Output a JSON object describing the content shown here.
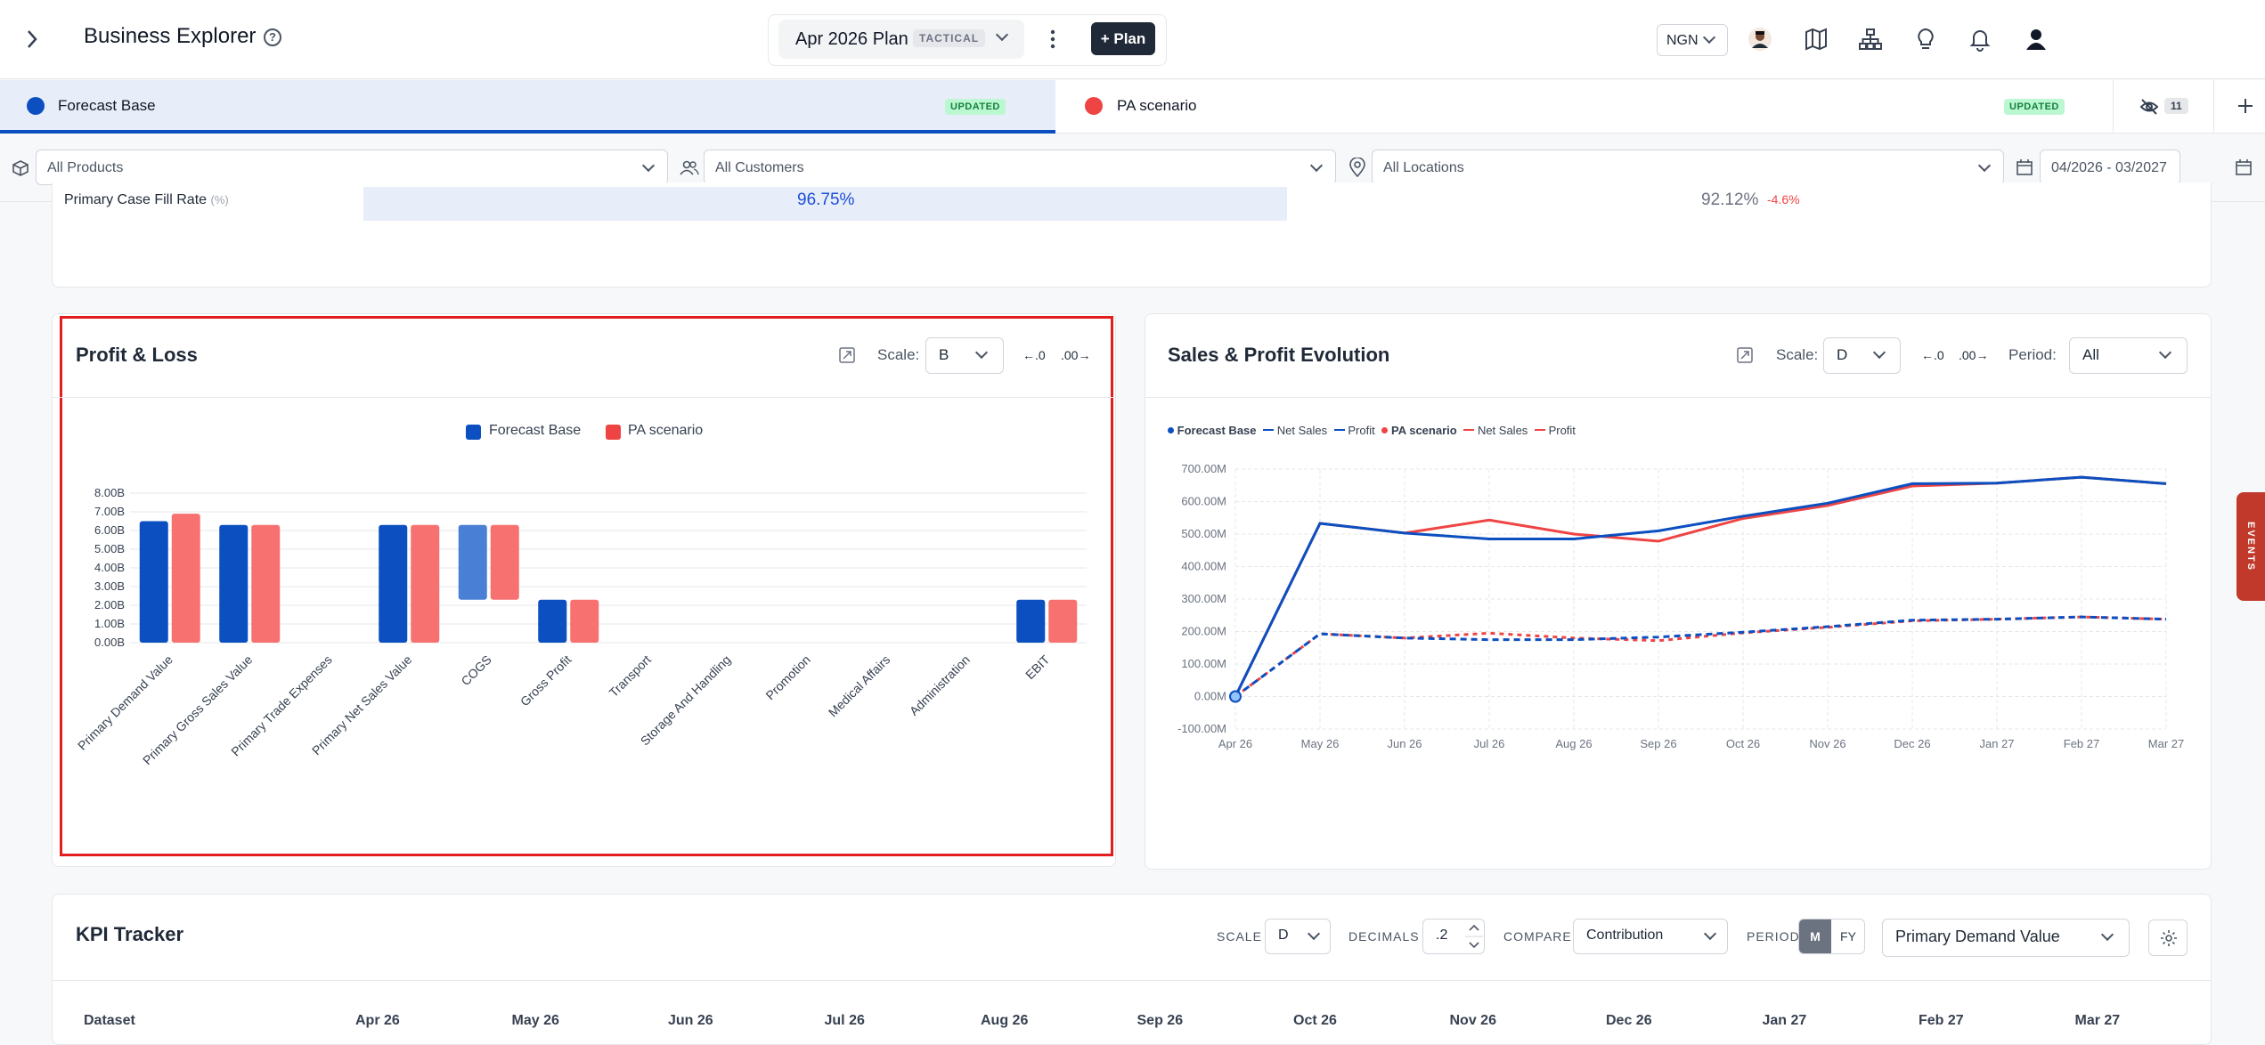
{
  "header": {
    "app_title": "Business Explorer",
    "help": "?",
    "plan_name": "Apr 2026 Plan",
    "plan_badge": "TACTICAL",
    "add_plan": "+ Plan",
    "currency": "NGN"
  },
  "tabs": [
    {
      "label": "Forecast Base",
      "status": "UPDATED",
      "color": "#0b4fc0"
    },
    {
      "label": "PA scenario",
      "status": "UPDATED",
      "color": "#ef4444"
    }
  ],
  "hidden_count": "11",
  "filters": {
    "products": "All Products",
    "customers": "All Customers",
    "locations": "All Locations",
    "date_range": "04/2026 - 03/2027"
  },
  "top_card": {
    "label": "Primary Case Fill Rate",
    "unit": "(%)",
    "base_value": "96.75%",
    "pa_value": "92.12%",
    "delta": "-4.6%"
  },
  "pl_card": {
    "title": "Profit & Loss",
    "scale_label": "Scale:",
    "scale_value": "B",
    "dec_less": "←.0",
    "dec_more": ".00→"
  },
  "evo_card": {
    "title": "Sales & Profit Evolution",
    "scale_label": "Scale:",
    "scale_value": "D",
    "dec_less": "←.0",
    "dec_more": ".00→",
    "period_label": "Period:",
    "period_value": "All",
    "legend": {
      "base": "Forecast Base",
      "pa": "PA scenario",
      "net_sales": "Net Sales",
      "profit": "Profit"
    }
  },
  "kpi": {
    "title": "KPI Tracker",
    "scale_label": "SCALE",
    "scale_value": "D",
    "decimals_label": "DECIMALS",
    "decimals_value": ".2",
    "compare_label": "COMPARE",
    "compare_value": "Contribution",
    "period_label": "PERIOD",
    "period_m": "M",
    "period_fy": "FY",
    "measure": "Primary Demand Value",
    "dataset_header": "Dataset",
    "months": [
      "Apr 26",
      "May 26",
      "Jun 26",
      "Jul 26",
      "Aug 26",
      "Sep 26",
      "Oct 26",
      "Nov 26",
      "Dec 26",
      "Jan 27",
      "Feb 27",
      "Mar 27"
    ]
  },
  "events_tab": "EVENTS",
  "colors": {
    "base": "#0b4fc0",
    "pa": "#ef4444",
    "base_light": "#4a7fd6",
    "pa_light": "#f87171",
    "highlight": "#e11d1d"
  },
  "chart_data": [
    {
      "type": "bar",
      "title": "Profit & Loss",
      "categories": [
        "Primary Demand Value",
        "Primary Gross Sales Value",
        "Primary Trade Expenses",
        "Primary Net Sales Value",
        "COGS",
        "Gross Profit",
        "Transport",
        "Storage And Handling",
        "Promotion",
        "Medical Affairs",
        "Administration",
        "EBIT"
      ],
      "series": [
        {
          "name": "Forecast Base",
          "values": [
            6.5,
            6.3,
            0,
            6.3,
            6.3,
            2.3,
            0,
            0,
            0,
            0,
            0,
            2.3
          ],
          "bases": [
            0,
            0,
            0,
            0,
            2.3,
            0,
            0,
            0,
            0,
            0,
            0,
            0
          ]
        },
        {
          "name": "PA scenario",
          "values": [
            6.9,
            6.3,
            0,
            6.3,
            6.3,
            2.3,
            0,
            0,
            0,
            0,
            0,
            2.3
          ],
          "bases": [
            0,
            0,
            0,
            0,
            2.3,
            0,
            0,
            0,
            0,
            0,
            0,
            0
          ]
        }
      ],
      "ylim": [
        0,
        8
      ],
      "yticks": [
        "0.00B",
        "1.00B",
        "2.00B",
        "3.00B",
        "4.00B",
        "5.00B",
        "6.00B",
        "7.00B",
        "8.00B"
      ],
      "legend": "top"
    },
    {
      "type": "line",
      "title": "Sales & Profit Evolution",
      "x": [
        "Apr 26",
        "May 26",
        "Jun 26",
        "Jul 26",
        "Aug 26",
        "Sep 26",
        "Oct 26",
        "Nov 26",
        "Dec 26",
        "Jan 27",
        "Feb 27",
        "Mar 27"
      ],
      "series": [
        {
          "name": "Forecast Base Net Sales",
          "values": [
            0,
            533,
            503,
            485,
            485,
            510,
            555,
            595,
            655,
            657,
            675,
            655
          ]
        },
        {
          "name": "Forecast Base Profit",
          "values": [
            0,
            193,
            180,
            175,
            175,
            183,
            198,
            215,
            235,
            238,
            245,
            238
          ]
        },
        {
          "name": "PA scenario Net Sales",
          "values": [
            0,
            533,
            503,
            543,
            500,
            478,
            548,
            588,
            648,
            657,
            675,
            655
          ]
        },
        {
          "name": "PA scenario Profit",
          "values": [
            0,
            193,
            180,
            195,
            180,
            172,
            196,
            213,
            233,
            238,
            245,
            238
          ]
        }
      ],
      "ylim": [
        -100,
        700
      ],
      "yticks": [
        "-100.00M",
        "0.00M",
        "100.00M",
        "200.00M",
        "300.00M",
        "400.00M",
        "500.00M",
        "600.00M",
        "700.00M"
      ],
      "legend": "top-left"
    }
  ]
}
